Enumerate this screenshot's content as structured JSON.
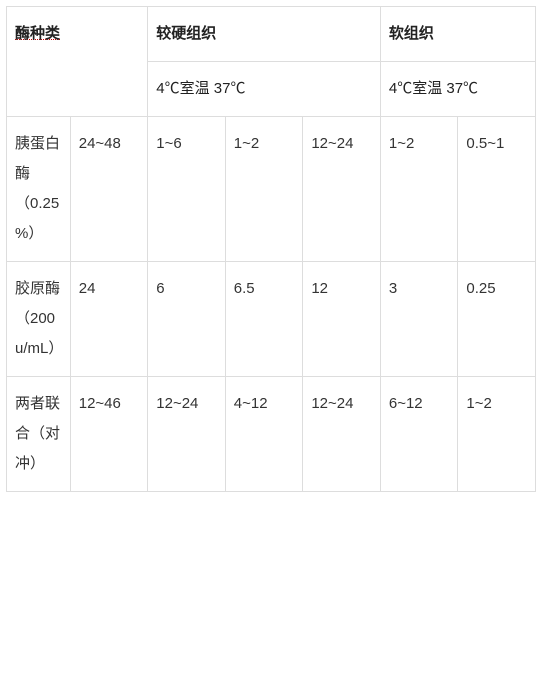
{
  "table": {
    "header": {
      "enzyme_type": "酶种类",
      "hard_tissue": "较硬组织",
      "soft_tissue": "软组织",
      "temp_row": "4℃室温 37℃"
    },
    "rows": [
      {
        "label": "胰蛋白酶（0.25%）",
        "c1": "24~48",
        "c2": "1~6",
        "c3": "1~2",
        "c4": "12~24",
        "c5": "1~2",
        "c6": "0.5~1"
      },
      {
        "label": "胶原酶（200u/mL）",
        "c1": "24",
        "c2": "6",
        "c3": "6.5",
        "c4": "12",
        "c5": "3",
        "c6": "0.25"
      },
      {
        "label": "两者联合（对冲）",
        "c1": "12~46",
        "c2": "12~24",
        "c3": "4~12",
        "c4": "12~24",
        "c5": "6~12",
        "c6": "1~2"
      }
    ],
    "colors": {
      "border": "#dddddd",
      "text": "#333333",
      "header_text": "#222222",
      "background": "#ffffff",
      "dotted_underline": "#cc0000"
    },
    "font": {
      "family": "Microsoft YaHei",
      "size_pt": 11
    }
  }
}
